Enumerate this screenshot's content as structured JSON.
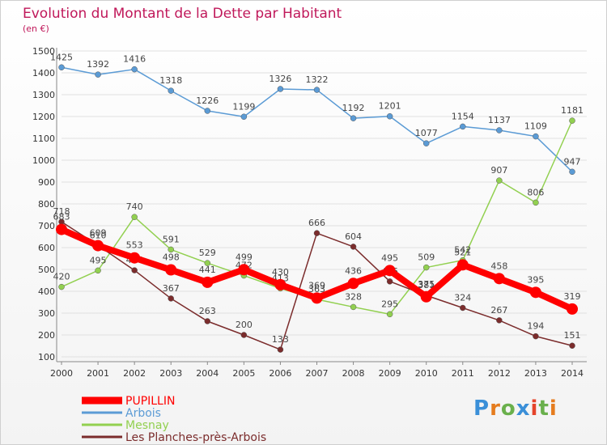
{
  "header": {
    "title": "Evolution du Montant de la Dette par Habitant",
    "subtitle": "(en €)"
  },
  "logo": {
    "text": "Proxiti"
  },
  "colors": {
    "title": "#c0185a",
    "grid": "#e0e0e0"
  },
  "chart_data": {
    "type": "line",
    "title": "Evolution du Montant de la Dette par Habitant",
    "ylabel": "(en €)",
    "ylim": [
      100,
      1500
    ],
    "yticks": [
      100,
      200,
      300,
      400,
      500,
      600,
      700,
      800,
      900,
      1000,
      1100,
      1200,
      1300,
      1400,
      1500
    ],
    "x": [
      "2000",
      "2001",
      "2002",
      "2003",
      "2004",
      "2005",
      "2006",
      "2007",
      "2008",
      "2009",
      "2010",
      "2011",
      "2012",
      "2013",
      "2014"
    ],
    "legend_position": "bottom-left",
    "series": [
      {
        "name": "Arbois",
        "color": "#5b9bd5",
        "values": [
          1425,
          1392,
          1416,
          1318,
          1226,
          1199,
          1326,
          1322,
          1192,
          1201,
          1077,
          1154,
          1137,
          1109,
          947
        ]
      },
      {
        "name": "Mesnay",
        "color": "#92d050",
        "values": [
          420,
          495,
          740,
          591,
          529,
          472,
          413,
          363,
          328,
          295,
          509,
          542,
          907,
          806,
          1181
        ]
      },
      {
        "name": "Les Planches-près-Arbois",
        "color": "#7b2c2c",
        "values": [
          718,
          610,
          496,
          367,
          263,
          200,
          133,
          666,
          604,
          445,
          381,
          324,
          267,
          194,
          151
        ]
      },
      {
        "name": "PUPILLIN",
        "color": "#ff0000",
        "values": [
          683,
          609,
          553,
          498,
          441,
          499,
          430,
          369,
          436,
          495,
          375,
          521,
          458,
          395,
          319
        ]
      }
    ]
  }
}
